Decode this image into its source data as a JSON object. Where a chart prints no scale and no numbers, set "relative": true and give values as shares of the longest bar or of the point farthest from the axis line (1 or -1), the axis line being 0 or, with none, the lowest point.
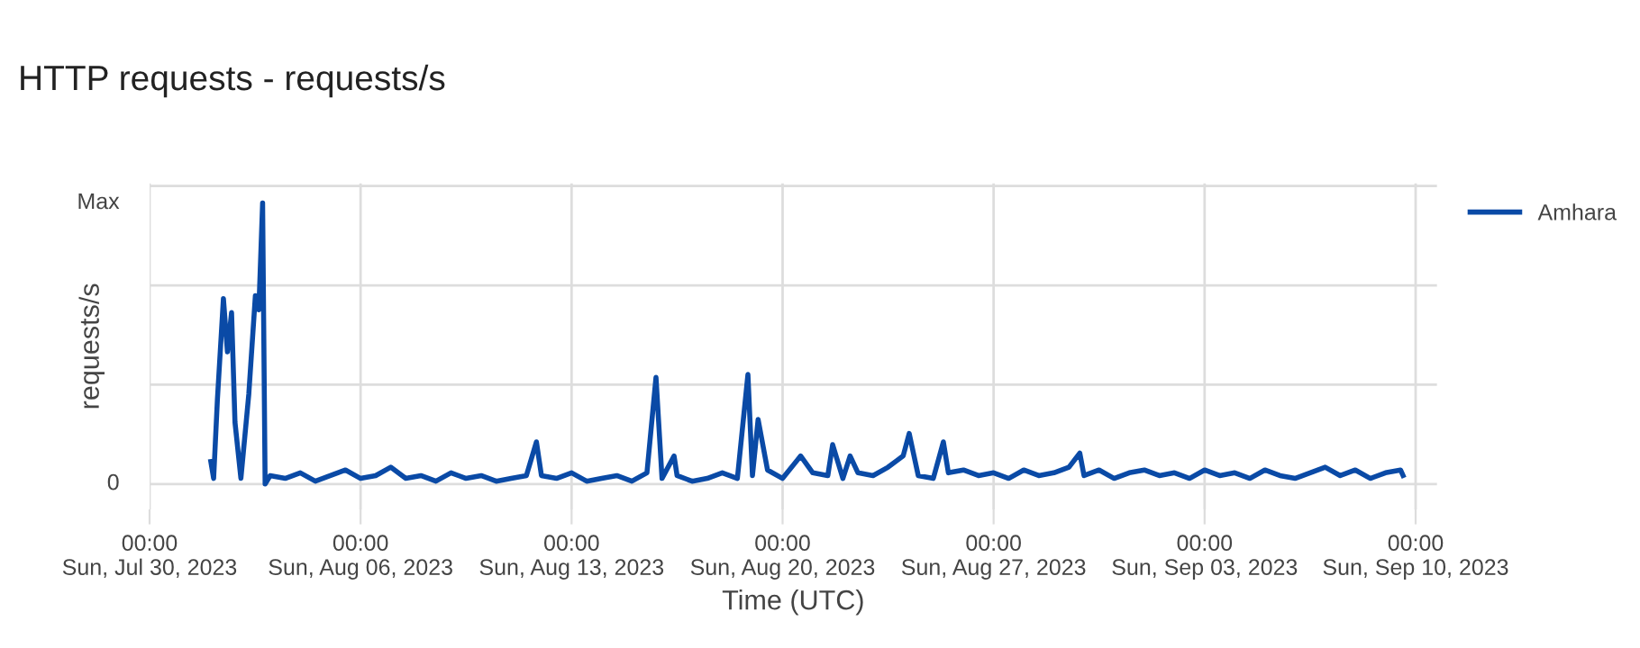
{
  "chart_data": {
    "type": "line",
    "title": "HTTP requests - requests/s",
    "xlabel": "Time (UTC)",
    "ylabel": "requests/s",
    "legend": "top right",
    "grid": true,
    "marker": "none",
    "line_style": "solid",
    "xlim": [
      "2023-07-30",
      "2023-09-10T17:00"
    ],
    "xticks": [
      {
        "value": "2023-07-30",
        "label": "00:00\nSun, Jul 30, 2023"
      },
      {
        "value": "2023-08-06",
        "label": "00:00\nSun, Aug 06, 2023"
      },
      {
        "value": "2023-08-13",
        "label": "00:00\nSun, Aug 13, 2023"
      },
      {
        "value": "2023-08-20",
        "label": "00:00\nSun, Aug 20, 2023"
      },
      {
        "value": "2023-08-27",
        "label": "00:00\nSun, Aug 27, 2023"
      },
      {
        "value": "2023-09-03",
        "label": "00:00\nSun, Sep 03, 2023"
      },
      {
        "value": "2023-09-10",
        "label": "00:00\nSun, Sep 10, 2023"
      }
    ],
    "relative": true,
    "annotations": [
      "0",
      "Max"
    ],
    "series": [
      {
        "name": "Amhara",
        "color": "#0a4aa6",
        "x": [
          "2023-08-01T00:45",
          "2023-08-01T03:00",
          "2023-08-01T06:00",
          "2023-08-01T10:48",
          "2023-08-01T14:00",
          "2023-08-01T17:17",
          "2023-08-01T20:00",
          "2023-08-02T00:43",
          "2023-08-02T07:00",
          "2023-08-02T12:14",
          "2023-08-02T15:00",
          "2023-08-02T18:00",
          "2023-08-02T20:00",
          "2023-08-03T00:00",
          "2023-08-03T12:00",
          "2023-08-04T00:00",
          "2023-08-04T12:00",
          "2023-08-05T00:00",
          "2023-08-05T12:00",
          "2023-08-06T00:00",
          "2023-08-06T12:00",
          "2023-08-07T00:00",
          "2023-08-07T12:00",
          "2023-08-08T00:00",
          "2023-08-08T12:00",
          "2023-08-09T00:00",
          "2023-08-09T12:00",
          "2023-08-10T00:00",
          "2023-08-10T12:00",
          "2023-08-11T00:00",
          "2023-08-11T12:00",
          "2023-08-11T20:00",
          "2023-08-12T00:00",
          "2023-08-12T12:00",
          "2023-08-13T00:00",
          "2023-08-13T12:00",
          "2023-08-14T00:00",
          "2023-08-14T12:00",
          "2023-08-15T00:00",
          "2023-08-15T12:00",
          "2023-08-15T19:12",
          "2023-08-16T00:00",
          "2023-08-16T09:36",
          "2023-08-16T12:00",
          "2023-08-17T00:00",
          "2023-08-17T12:00",
          "2023-08-18T00:00",
          "2023-08-18T12:00",
          "2023-08-18T20:24",
          "2023-08-19T00:00",
          "2023-08-19T04:30",
          "2023-08-19T12:00",
          "2023-08-20T00:00",
          "2023-08-20T14:24",
          "2023-08-21T00:00",
          "2023-08-21T12:00",
          "2023-08-21T15:50",
          "2023-08-22T00:00",
          "2023-08-22T05:45",
          "2023-08-22T12:00",
          "2023-08-23T00:00",
          "2023-08-23T12:00",
          "2023-08-24T00:00",
          "2023-08-24T04:48",
          "2023-08-24T12:00",
          "2023-08-25T00:00",
          "2023-08-25T08:00",
          "2023-08-25T12:00",
          "2023-08-26T00:00",
          "2023-08-26T12:00",
          "2023-08-27T00:00",
          "2023-08-27T12:00",
          "2023-08-28T00:00",
          "2023-08-28T12:00",
          "2023-08-29T00:00",
          "2023-08-29T12:00",
          "2023-08-29T20:38",
          "2023-08-30T00:00",
          "2023-08-30T12:00",
          "2023-08-31T00:00",
          "2023-08-31T12:00",
          "2023-09-01T00:00",
          "2023-09-01T12:00",
          "2023-09-02T00:00",
          "2023-09-02T12:00",
          "2023-09-03T00:00",
          "2023-09-03T12:00",
          "2023-09-04T00:00",
          "2023-09-04T12:00",
          "2023-09-05T00:00",
          "2023-09-05T12:00",
          "2023-09-06T00:00",
          "2023-09-06T12:00",
          "2023-09-07T00:00",
          "2023-09-07T12:00",
          "2023-09-08T00:00",
          "2023-09-08T12:00",
          "2023-09-09T00:00",
          "2023-09-09T12:00",
          "2023-09-09T14:00"
        ],
        "values": [
          0.08,
          0.02,
          0.3,
          0.66,
          0.47,
          0.61,
          0.22,
          0.02,
          0.32,
          0.67,
          0.62,
          1.0,
          0.0,
          0.03,
          0.02,
          0.04,
          0.01,
          0.03,
          0.05,
          0.02,
          0.03,
          0.06,
          0.02,
          0.03,
          0.01,
          0.04,
          0.02,
          0.03,
          0.01,
          0.02,
          0.03,
          0.15,
          0.03,
          0.02,
          0.04,
          0.01,
          0.02,
          0.03,
          0.01,
          0.04,
          0.38,
          0.02,
          0.1,
          0.03,
          0.01,
          0.02,
          0.04,
          0.02,
          0.39,
          0.03,
          0.23,
          0.05,
          0.02,
          0.1,
          0.04,
          0.03,
          0.14,
          0.02,
          0.1,
          0.04,
          0.03,
          0.06,
          0.1,
          0.18,
          0.03,
          0.02,
          0.15,
          0.04,
          0.05,
          0.03,
          0.04,
          0.02,
          0.05,
          0.03,
          0.04,
          0.06,
          0.11,
          0.03,
          0.05,
          0.02,
          0.04,
          0.05,
          0.03,
          0.04,
          0.02,
          0.05,
          0.03,
          0.04,
          0.02,
          0.05,
          0.03,
          0.02,
          0.04,
          0.06,
          0.03,
          0.05,
          0.02,
          0.04,
          0.05,
          0.03
        ]
      }
    ]
  }
}
